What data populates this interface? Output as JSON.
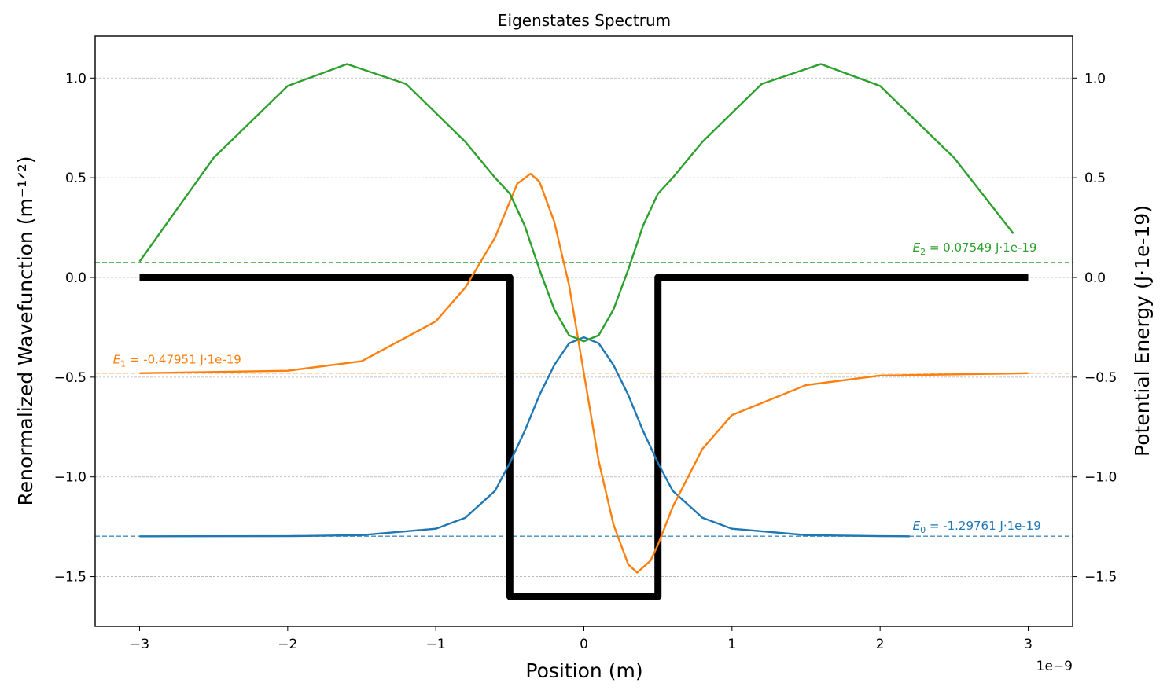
{
  "chart_data": {
    "type": "line",
    "title": "Eigenstates Spectrum",
    "xlabel": "Position (m)",
    "xlabel_offset_text": "1e−9",
    "ylabel_left": "Renormalized Wavefunction",
    "ylabel_left_units": "(m⁻¹ᐟ²)",
    "ylabel_right": "Potential Energy (J·1e-19)",
    "xlim": [
      -3.3,
      3.3
    ],
    "ylim": [
      -1.75,
      1.21
    ],
    "grid": "y-major-dashed",
    "x_ticks": [
      -3,
      -2,
      -1,
      0,
      1,
      2,
      3
    ],
    "x_tick_labels": [
      "−3",
      "−2",
      "−1",
      "0",
      "1",
      "2",
      "3"
    ],
    "y_ticks": [
      1.0,
      0.5,
      0.0,
      -0.5,
      -1.0,
      -1.5
    ],
    "y_tick_labels": [
      "1.0",
      "0.5",
      "0.0",
      "−0.5",
      "−1.0",
      "−1.5"
    ],
    "potential": {
      "name": "Potential",
      "color": "#000000",
      "x": [
        -3.0,
        -0.5,
        -0.5,
        0.5,
        0.5,
        3.0
      ],
      "y": [
        0.0,
        0.0,
        -1.6,
        -1.6,
        0.0,
        0.0
      ]
    },
    "series": [
      {
        "state": 0,
        "color": "#1f77b4",
        "energy": -1.29761,
        "label_prefix": "E",
        "label_sub": "0",
        "label_text": " = -1.29761 J·1e-19",
        "x": [
          -3.0,
          -2.0,
          -1.5,
          -1.0,
          -0.8,
          -0.6,
          -0.5,
          -0.4,
          -0.3,
          -0.2,
          -0.1,
          0.0,
          0.1,
          0.2,
          0.3,
          0.4,
          0.5,
          0.6,
          0.8,
          1.0,
          1.5,
          2.0,
          2.2
        ],
        "y": [
          -1.298,
          -1.297,
          -1.292,
          -1.26,
          -1.205,
          -1.07,
          -0.93,
          -0.77,
          -0.59,
          -0.44,
          -0.33,
          -0.3,
          -0.33,
          -0.44,
          -0.59,
          -0.77,
          -0.93,
          -1.07,
          -1.205,
          -1.26,
          -1.292,
          -1.297,
          -1.298
        ]
      },
      {
        "state": 1,
        "color": "#ff7f0e",
        "energy": -0.47951,
        "label_prefix": "E",
        "label_sub": "1",
        "label_text": " = -0.47951 J·1e-19",
        "x": [
          -3.0,
          -2.0,
          -1.5,
          -1.0,
          -0.8,
          -0.6,
          -0.5,
          -0.45,
          -0.36,
          -0.3,
          -0.2,
          -0.1,
          0.0,
          0.1,
          0.2,
          0.3,
          0.36,
          0.45,
          0.5,
          0.6,
          0.8,
          1.0,
          1.5,
          2.0,
          3.0
        ],
        "y": [
          -0.48,
          -0.468,
          -0.42,
          -0.22,
          -0.05,
          0.2,
          0.38,
          0.47,
          0.52,
          0.48,
          0.28,
          -0.04,
          -0.48,
          -0.92,
          -1.24,
          -1.44,
          -1.48,
          -1.42,
          -1.34,
          -1.15,
          -0.86,
          -0.69,
          -0.54,
          -0.492,
          -0.48
        ]
      },
      {
        "state": 2,
        "color": "#2ca02c",
        "energy": 0.07549,
        "label_prefix": "E",
        "label_sub": "2",
        "label_text": " = 0.07549 J·1e-19",
        "x": [
          -3.0,
          -2.5,
          -2.0,
          -1.6,
          -1.2,
          -0.8,
          -0.6,
          -0.5,
          -0.4,
          -0.3,
          -0.2,
          -0.1,
          0.0,
          0.1,
          0.2,
          0.3,
          0.4,
          0.5,
          0.6,
          0.8,
          1.2,
          1.6,
          2.0,
          2.5,
          2.9
        ],
        "y": [
          0.08,
          0.6,
          0.96,
          1.07,
          0.97,
          0.68,
          0.5,
          0.42,
          0.26,
          0.04,
          -0.16,
          -0.29,
          -0.32,
          -0.29,
          -0.16,
          0.04,
          0.26,
          0.42,
          0.5,
          0.68,
          0.97,
          1.07,
          0.96,
          0.6,
          0.22
        ]
      }
    ]
  }
}
